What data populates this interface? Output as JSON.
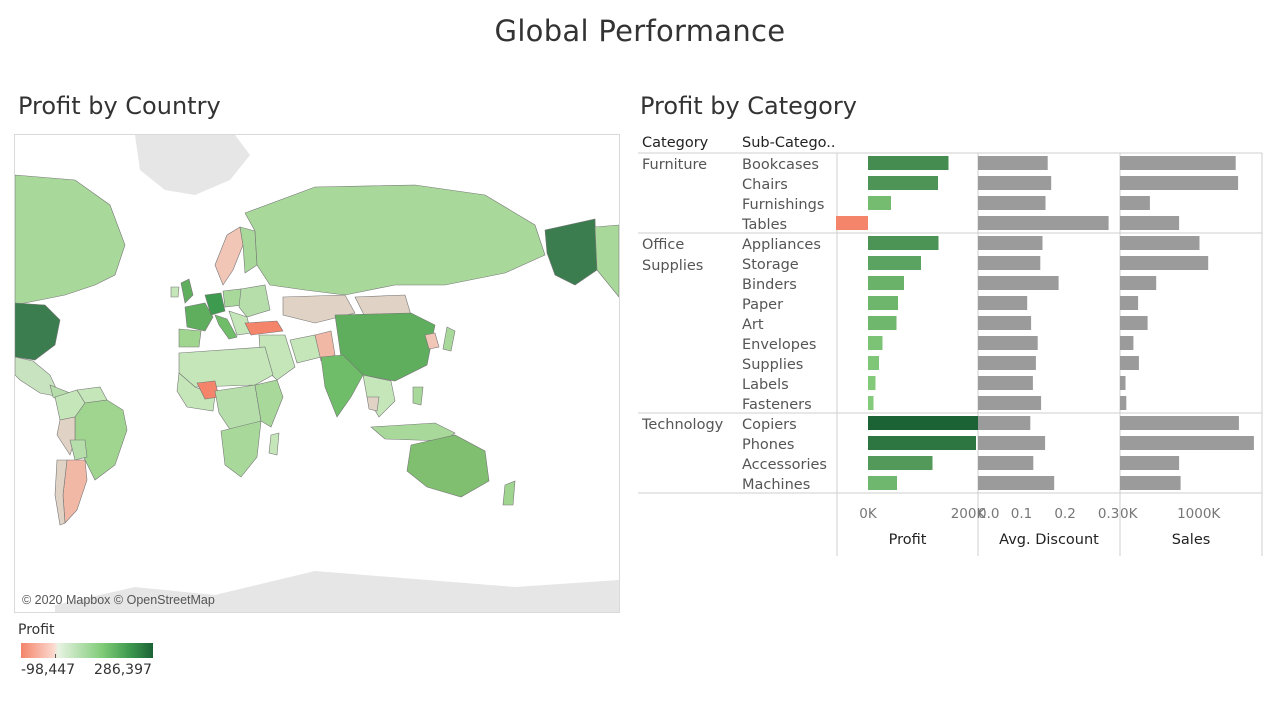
{
  "title": "Global Performance",
  "map": {
    "title": "Profit by Country",
    "credit": "© 2020 Mapbox © OpenStreetMap",
    "legend": {
      "title": "Profit",
      "min_label": "-98,447",
      "max_label": "286,397",
      "min_value": -98447,
      "max_value": 286397,
      "color_low": "#f4846a",
      "color_mid": "#e8f3e3",
      "color_high": "#1b6335"
    }
  },
  "category_panel": {
    "title": "Profit by Category",
    "column_headers": {
      "category": "Category",
      "sub_category": "Sub-Catego.."
    }
  },
  "chart_data": {
    "type": "bar",
    "title": "Profit by Category",
    "groups": [
      {
        "category": "Furniture",
        "sub_categories": [
          "Bookcases",
          "Chairs",
          "Furnishings",
          "Tables"
        ]
      },
      {
        "category": "Office Supplies",
        "category_lines": [
          "Office",
          "Supplies"
        ],
        "sub_categories": [
          "Appliances",
          "Storage",
          "Binders",
          "Paper",
          "Art",
          "Envelopes",
          "Supplies",
          "Labels",
          "Fasteners"
        ]
      },
      {
        "category": "Technology",
        "sub_categories": [
          "Copiers",
          "Phones",
          "Accessories",
          "Machines"
        ]
      }
    ],
    "categories": [
      "Bookcases",
      "Chairs",
      "Furnishings",
      "Tables",
      "Appliances",
      "Storage",
      "Binders",
      "Paper",
      "Art",
      "Envelopes",
      "Supplies",
      "Labels",
      "Fasteners",
      "Copiers",
      "Phones",
      "Accessories",
      "Machines"
    ],
    "series": [
      {
        "name": "Profit",
        "axis_ticks": [
          0,
          200000
        ],
        "axis_tick_labels": [
          "0K",
          "200K"
        ],
        "xlim": [
          -50000,
          220000
        ],
        "values": [
          161000,
          140000,
          46000,
          -64000,
          141000,
          106000,
          72000,
          60000,
          57000,
          29000,
          22000,
          15000,
          11000,
          258000,
          216000,
          129000,
          58000
        ]
      },
      {
        "name": "Avg. Discount",
        "axis_ticks": [
          0.0,
          0.1,
          0.2,
          0.3
        ],
        "axis_tick_labels": [
          "0.0",
          "0.1",
          "0.2",
          "0.3"
        ],
        "xlim": [
          0,
          0.31
        ],
        "values": [
          0.16,
          0.168,
          0.155,
          0.3,
          0.148,
          0.143,
          0.185,
          0.113,
          0.122,
          0.137,
          0.133,
          0.126,
          0.145,
          0.12,
          0.154,
          0.127,
          0.175
        ]
      },
      {
        "name": "Sales",
        "axis_ticks": [
          0,
          1000000
        ],
        "axis_tick_labels": [
          "0K",
          "1000K"
        ],
        "xlim": [
          0,
          1740000
        ],
        "values": [
          1470000,
          1500000,
          380000,
          750000,
          1010000,
          1120000,
          460000,
          230000,
          350000,
          170000,
          240000,
          70000,
          80000,
          1510000,
          1700000,
          750000,
          770000
        ]
      }
    ],
    "colors": {
      "profit_scale": [
        "#f4846a",
        "#88cf7e",
        "#1b6335"
      ],
      "neutral_bar": "#9b9b9b"
    }
  }
}
